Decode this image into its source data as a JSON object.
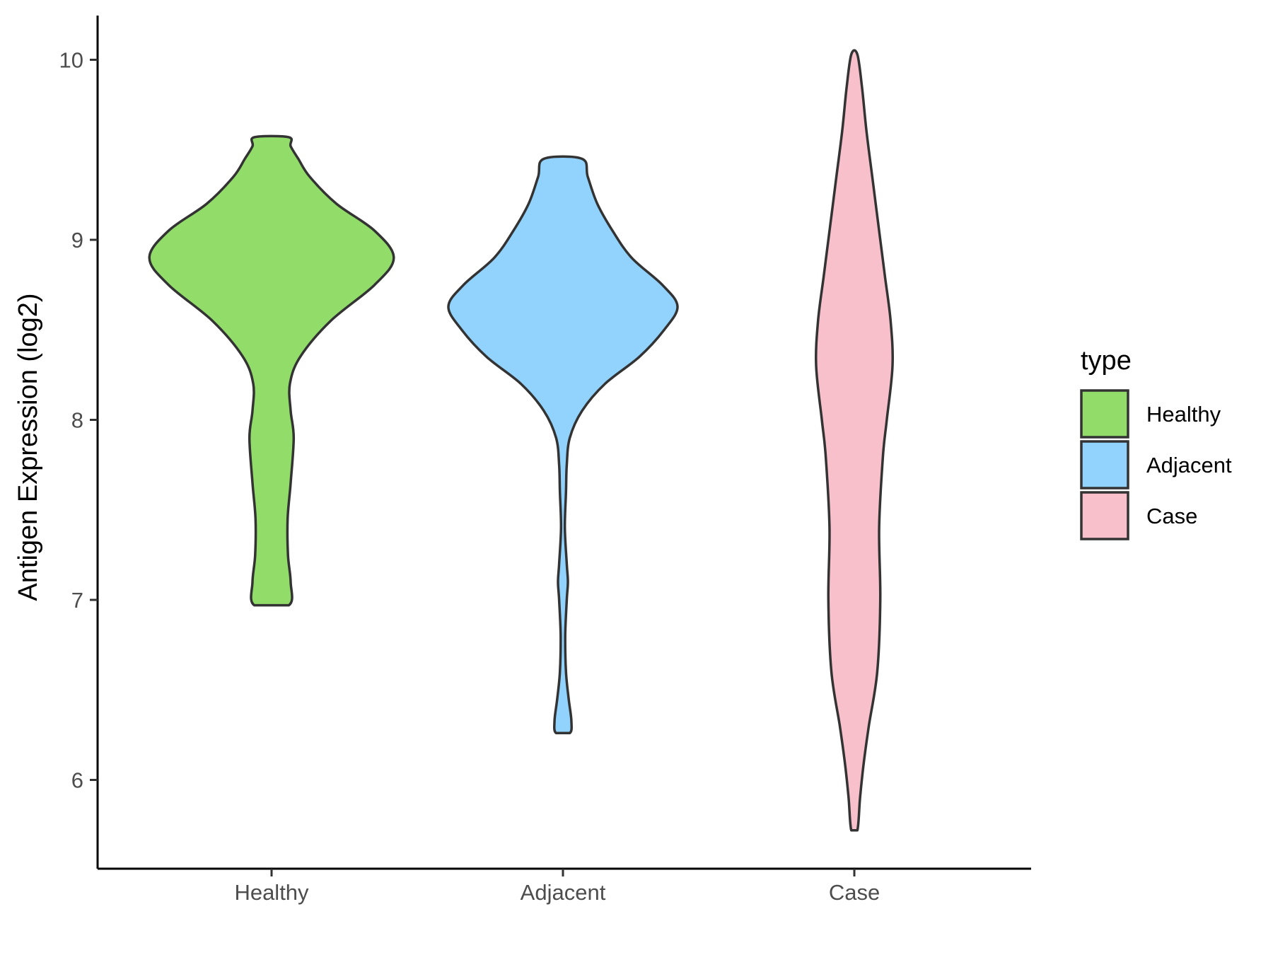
{
  "chart_data": {
    "type": "violin",
    "title": "",
    "xlabel": "",
    "ylabel": "Antigen Expression (log2)",
    "categories": [
      "Healthy",
      "Adjacent",
      "Case"
    ],
    "ylim": [
      5.5,
      10.25
    ],
    "yticks": [
      6,
      7,
      8,
      9,
      10
    ],
    "ytick_labels": [
      "6",
      "7",
      "8",
      "9",
      "10"
    ],
    "grid": false,
    "legend": {
      "title": "type",
      "position": "right",
      "entries": [
        "Healthy",
        "Adjacent",
        "Case"
      ]
    },
    "colors": {
      "Healthy": "#92dc6a",
      "Adjacent": "#92d3fe",
      "Case": "#f7c0cb",
      "outline": "#333333"
    },
    "series": [
      {
        "name": "Healthy",
        "min": 6.97,
        "max": 9.57,
        "profile": [
          [
            6.97,
            0.045
          ],
          [
            7.1,
            0.05
          ],
          [
            7.25,
            0.043
          ],
          [
            7.45,
            0.042
          ],
          [
            7.65,
            0.05
          ],
          [
            7.9,
            0.058
          ],
          [
            8.05,
            0.05
          ],
          [
            8.2,
            0.048
          ],
          [
            8.35,
            0.075
          ],
          [
            8.55,
            0.155
          ],
          [
            8.75,
            0.27
          ],
          [
            8.9,
            0.32
          ],
          [
            9.05,
            0.27
          ],
          [
            9.2,
            0.17
          ],
          [
            9.35,
            0.1
          ],
          [
            9.45,
            0.07
          ],
          [
            9.52,
            0.05
          ],
          [
            9.57,
            0.045
          ]
        ]
      },
      {
        "name": "Adjacent",
        "min": 6.26,
        "max": 9.45,
        "profile": [
          [
            6.26,
            0.018
          ],
          [
            6.33,
            0.022
          ],
          [
            6.45,
            0.015
          ],
          [
            6.6,
            0.008
          ],
          [
            6.8,
            0.006
          ],
          [
            7.0,
            0.01
          ],
          [
            7.1,
            0.013
          ],
          [
            7.2,
            0.01
          ],
          [
            7.4,
            0.005
          ],
          [
            7.6,
            0.008
          ],
          [
            7.75,
            0.01
          ],
          [
            7.9,
            0.018
          ],
          [
            8.05,
            0.05
          ],
          [
            8.2,
            0.11
          ],
          [
            8.35,
            0.2
          ],
          [
            8.5,
            0.265
          ],
          [
            8.63,
            0.3
          ],
          [
            8.75,
            0.26
          ],
          [
            8.9,
            0.18
          ],
          [
            9.05,
            0.13
          ],
          [
            9.2,
            0.09
          ],
          [
            9.35,
            0.065
          ],
          [
            9.45,
            0.05
          ]
        ]
      },
      {
        "name": "Case",
        "min": 5.72,
        "max": 10.03,
        "profile": [
          [
            5.72,
            0.008
          ],
          [
            5.9,
            0.015
          ],
          [
            6.1,
            0.025
          ],
          [
            6.3,
            0.038
          ],
          [
            6.6,
            0.06
          ],
          [
            7.0,
            0.068
          ],
          [
            7.4,
            0.065
          ],
          [
            7.8,
            0.075
          ],
          [
            8.0,
            0.085
          ],
          [
            8.3,
            0.1
          ],
          [
            8.55,
            0.095
          ],
          [
            8.8,
            0.08
          ],
          [
            9.0,
            0.068
          ],
          [
            9.3,
            0.05
          ],
          [
            9.6,
            0.032
          ],
          [
            9.85,
            0.02
          ],
          [
            10.03,
            0.008
          ]
        ]
      }
    ]
  }
}
